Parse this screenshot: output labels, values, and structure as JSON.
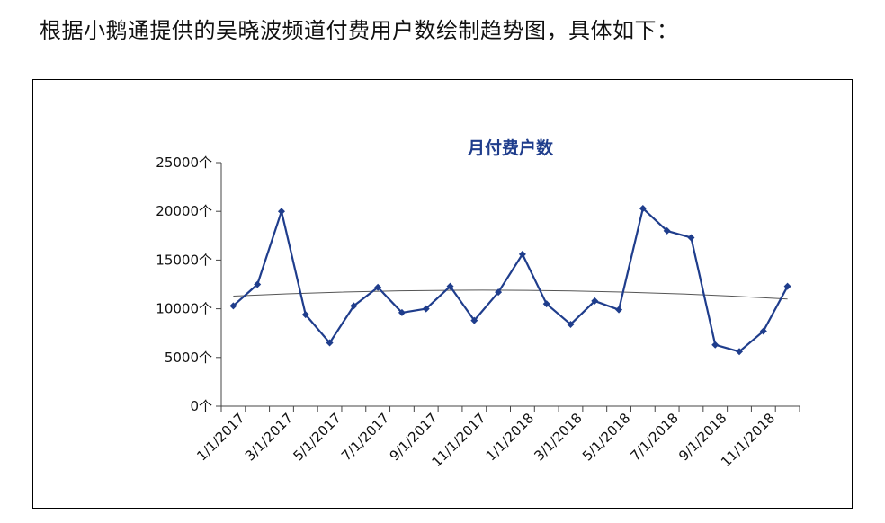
{
  "caption": "根据小鹅通提供的吴晓波频道付费用户数绘制趋势图，具体如下：",
  "chart_data": {
    "type": "line",
    "title": "月付费户数",
    "xlabel": "",
    "ylabel": "",
    "ylim": [
      0,
      25000
    ],
    "y_ticks": [
      "0个",
      "5000个",
      "10000个",
      "15000个",
      "20000个",
      "25000个"
    ],
    "x_tick_labels": [
      "1/1/2017",
      "3/1/2017",
      "5/1/2017",
      "7/1/2017",
      "9/1/2017",
      "11/1/2017",
      "1/1/2018",
      "3/1/2018",
      "5/1/2018",
      "7/1/2018",
      "9/1/2018",
      "11/1/2018"
    ],
    "x": [
      "1/1/2017",
      "2/1/2017",
      "3/1/2017",
      "4/1/2017",
      "5/1/2017",
      "6/1/2017",
      "7/1/2017",
      "8/1/2017",
      "9/1/2017",
      "10/1/2017",
      "11/1/2017",
      "12/1/2017",
      "1/1/2018",
      "2/1/2018",
      "3/1/2018",
      "4/1/2018",
      "5/1/2018",
      "6/1/2018",
      "7/1/2018",
      "8/1/2018",
      "9/1/2018",
      "10/1/2018",
      "11/1/2018",
      "12/1/2018"
    ],
    "series": [
      {
        "values": [
          10300,
          12500,
          20000,
          9400,
          6500,
          10300,
          12200,
          9600,
          10000,
          12300,
          8800,
          11700,
          15600,
          10500,
          8400,
          10800,
          9900,
          20300,
          18000,
          17300,
          6300,
          5600,
          7700,
          12300
        ],
        "color": "#1f3d8c"
      }
    ],
    "trendline": {
      "start": 11300,
      "mid": 11900,
      "end": 11000,
      "color": "#555555"
    },
    "grid": false,
    "legend": "none"
  }
}
